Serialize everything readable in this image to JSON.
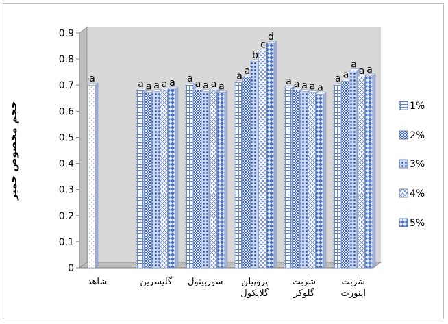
{
  "chart_data": {
    "type": "bar",
    "ylabel": "حجم مخصوص خمیر",
    "xlabel": "",
    "ylim": [
      0,
      0.9
    ],
    "y_ticks": [
      "0",
      "0.1",
      "0.2",
      "0.3",
      "0.4",
      "0.5",
      "0.6",
      "0.7",
      "0.8",
      "0.9"
    ],
    "grid": false,
    "legend_position": "right",
    "series_names": [
      "1%",
      "2%",
      "3%",
      "4%",
      "5%"
    ],
    "control": {
      "category": "شاهد",
      "value": 0.7,
      "letter": "a"
    },
    "categories": [
      {
        "lines": [
          "گلیسرین"
        ],
        "values": [
          0.68,
          0.67,
          0.675,
          0.68,
          0.685
        ],
        "letters": [
          "a",
          "a",
          "a",
          "a",
          "a"
        ]
      },
      {
        "lines": [
          "سوربیتول"
        ],
        "values": [
          0.7,
          0.68,
          0.675,
          0.68,
          0.67
        ],
        "letters": [
          "a",
          "a",
          "a",
          "a",
          "a"
        ]
      },
      {
        "lines": [
          "پروپیلن",
          "گلایکول"
        ],
        "values": [
          0.71,
          0.73,
          0.79,
          0.83,
          0.86
        ],
        "letters": [
          "a",
          "a",
          "b",
          "c",
          "d"
        ]
      },
      {
        "lines": [
          "شربت",
          "گلوکز"
        ],
        "values": [
          0.69,
          0.68,
          0.675,
          0.67,
          0.665
        ],
        "letters": [
          "a",
          "a",
          "a",
          "a",
          "a"
        ]
      },
      {
        "lines": [
          "شربت",
          "اینورت"
        ],
        "values": [
          0.7,
          0.715,
          0.755,
          0.73,
          0.735
        ],
        "letters": [
          "a",
          "a",
          "a",
          "a",
          "a"
        ]
      }
    ]
  }
}
